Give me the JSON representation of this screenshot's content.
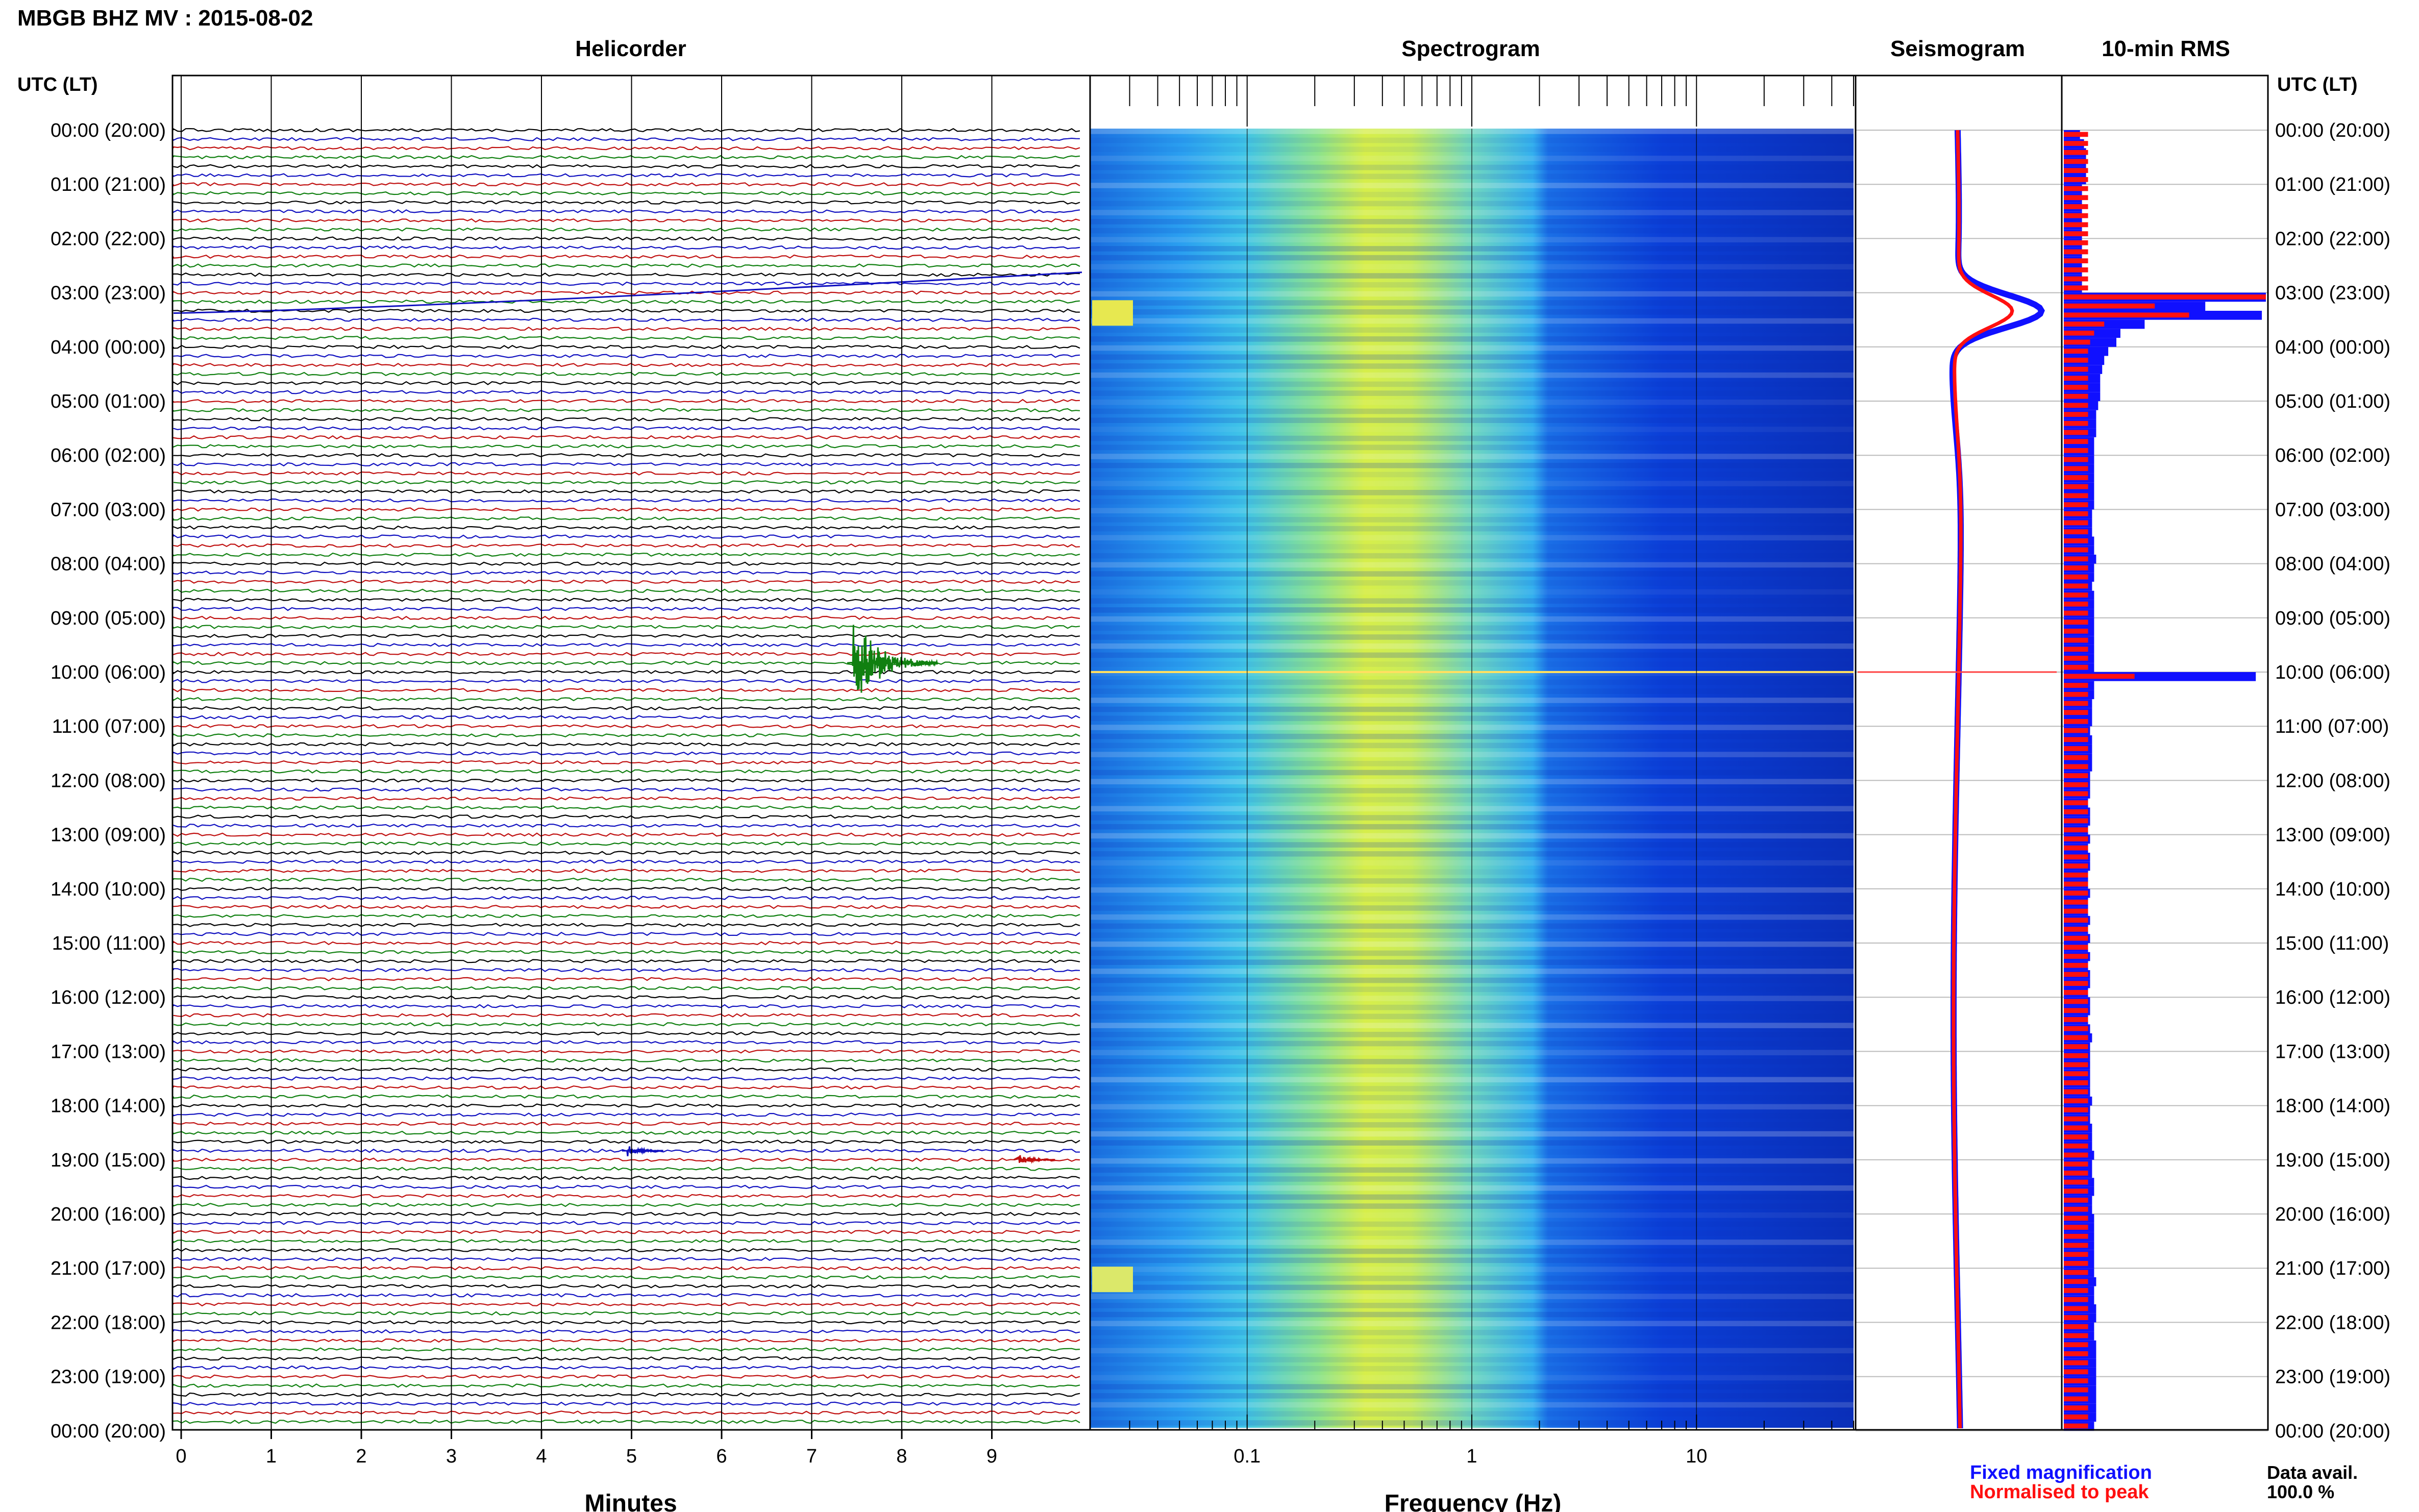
{
  "header": {
    "title": "MBGB BHZ MV : 2015-08-02"
  },
  "panels": {
    "helicorder": "Helicorder",
    "spectrogram": "Spectrogram",
    "seismogram": "Seismogram",
    "rms": "10-min RMS"
  },
  "axes": {
    "time_header_left": "UTC (LT)",
    "time_header_right": "UTC (LT)",
    "minutes_label": "Minutes",
    "frequency_label": "Frequency (Hz)"
  },
  "legend": {
    "fixed": "Fixed magnification",
    "normalised": "Normalised to peak",
    "fixed_color": "#1010ff",
    "normalised_color": "#ff1010"
  },
  "data_avail": {
    "label": "Data avail.",
    "value": "100.0 %"
  },
  "chart_data": {
    "type": "heatmap",
    "time_labels": [
      "00:00 (20:00)",
      "01:00 (21:00)",
      "02:00 (22:00)",
      "03:00 (23:00)",
      "04:00 (00:00)",
      "05:00 (01:00)",
      "06:00 (02:00)",
      "07:00 (03:00)",
      "08:00 (04:00)",
      "09:00 (05:00)",
      "10:00 (06:00)",
      "11:00 (07:00)",
      "12:00 (08:00)",
      "13:00 (09:00)",
      "14:00 (10:00)",
      "15:00 (11:00)",
      "16:00 (12:00)",
      "17:00 (13:00)",
      "18:00 (14:00)",
      "19:00 (15:00)",
      "20:00 (16:00)",
      "21:00 (17:00)",
      "22:00 (18:00)",
      "23:00 (19:00)",
      "00:00 (20:00)"
    ],
    "minute_ticks": [
      "0",
      "1",
      "2",
      "3",
      "4",
      "5",
      "6",
      "7",
      "8",
      "9"
    ],
    "freq_ticks": [
      "0.1",
      "1",
      "10"
    ],
    "freq_range": [
      0.02,
      50
    ],
    "trace_colors": [
      "#000000",
      "#1010c0",
      "#c01010",
      "#108010"
    ],
    "helicorder_events": [
      {
        "row": 18,
        "minute": 2.8,
        "note": "slow drift 03:00"
      },
      {
        "row": 59,
        "minute": 7.45
      },
      {
        "row": 113,
        "minute": 4.95
      },
      {
        "row": 114,
        "minute": 9.3
      }
    ],
    "rms_blue": [
      0.08,
      0.1,
      0.11,
      0.11,
      0.11,
      0.11,
      0.09,
      0.09,
      0.09,
      0.09,
      0.09,
      0.09,
      0.09,
      0.09,
      0.09,
      0.09,
      0.09,
      0.09,
      1.0,
      0.7,
      0.98,
      0.4,
      0.28,
      0.26,
      0.22,
      0.2,
      0.19,
      0.18,
      0.18,
      0.18,
      0.17,
      0.16,
      0.16,
      0.16,
      0.15,
      0.15,
      0.15,
      0.15,
      0.15,
      0.15,
      0.15,
      0.15,
      0.14,
      0.14,
      0.14,
      0.15,
      0.15,
      0.16,
      0.15,
      0.15,
      0.14,
      0.15,
      0.15,
      0.15,
      0.15,
      0.15,
      0.15,
      0.15,
      0.15,
      0.15,
      0.95,
      0.15,
      0.15,
      0.14,
      0.14,
      0.14,
      0.13,
      0.14,
      0.14,
      0.14,
      0.14,
      0.13,
      0.13,
      0.13,
      0.12,
      0.13,
      0.13,
      0.12,
      0.13,
      0.12,
      0.13,
      0.13,
      0.12,
      0.12,
      0.13,
      0.12,
      0.12,
      0.13,
      0.12,
      0.13,
      0.12,
      0.13,
      0.12,
      0.13,
      0.13,
      0.12,
      0.13,
      0.13,
      0.12,
      0.13,
      0.14,
      0.13,
      0.13,
      0.13,
      0.13,
      0.13,
      0.13,
      0.14,
      0.13,
      0.13,
      0.14,
      0.14,
      0.14,
      0.15,
      0.14,
      0.14,
      0.15,
      0.15,
      0.14,
      0.14,
      0.15,
      0.15,
      0.15,
      0.15,
      0.15,
      0.15,
      0.15,
      0.16,
      0.15,
      0.15,
      0.16,
      0.16,
      0.15,
      0.15,
      0.16,
      0.16,
      0.16,
      0.16,
      0.16,
      0.16,
      0.16,
      0.16,
      0.16,
      0.15
    ],
    "rms_red": [
      0.12,
      0.12,
      0.12,
      0.12,
      0.12,
      0.12,
      0.12,
      0.12,
      0.12,
      0.12,
      0.12,
      0.12,
      0.12,
      0.12,
      0.12,
      0.12,
      0.12,
      0.12,
      1.0,
      0.45,
      0.62,
      0.2,
      0.15,
      0.13,
      0.12,
      0.12,
      0.12,
      0.12,
      0.12,
      0.12,
      0.12,
      0.12,
      0.12,
      0.12,
      0.12,
      0.12,
      0.12,
      0.12,
      0.12,
      0.12,
      0.12,
      0.12,
      0.12,
      0.12,
      0.12,
      0.12,
      0.12,
      0.12,
      0.12,
      0.12,
      0.12,
      0.12,
      0.12,
      0.12,
      0.12,
      0.12,
      0.12,
      0.12,
      0.12,
      0.12,
      0.35,
      0.12,
      0.12,
      0.12,
      0.12,
      0.12,
      0.12,
      0.12,
      0.12,
      0.12,
      0.12,
      0.12,
      0.12,
      0.12,
      0.12,
      0.12,
      0.12,
      0.12,
      0.12,
      0.12,
      0.12,
      0.12,
      0.12,
      0.12,
      0.12,
      0.12,
      0.12,
      0.12,
      0.12,
      0.12,
      0.12,
      0.12,
      0.12,
      0.12,
      0.12,
      0.12,
      0.12,
      0.12,
      0.12,
      0.12,
      0.12,
      0.12,
      0.12,
      0.12,
      0.12,
      0.12,
      0.12,
      0.12,
      0.12,
      0.12,
      0.12,
      0.12,
      0.12,
      0.12,
      0.12,
      0.12,
      0.12,
      0.12,
      0.12,
      0.12,
      0.12,
      0.12,
      0.12,
      0.12,
      0.12,
      0.12,
      0.12,
      0.12,
      0.12,
      0.12,
      0.12,
      0.12,
      0.12,
      0.12,
      0.12,
      0.12,
      0.12,
      0.12,
      0.12,
      0.12,
      0.12,
      0.12,
      0.12,
      0.12
    ]
  }
}
